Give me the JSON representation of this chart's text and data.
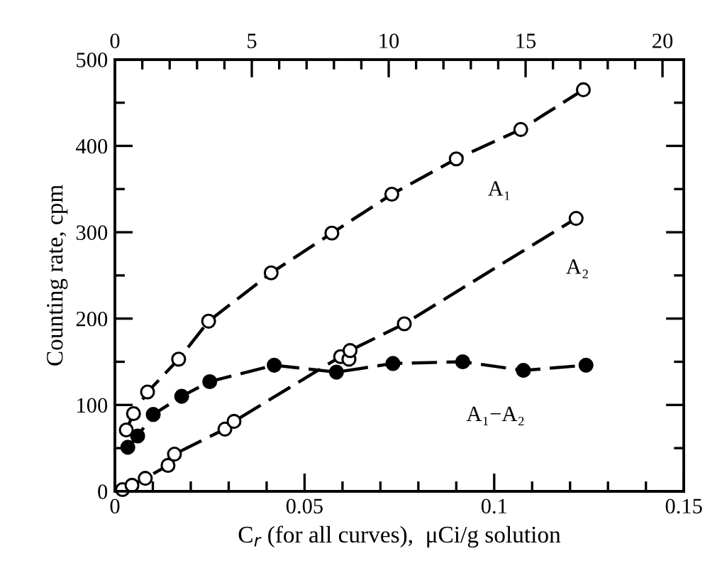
{
  "chart_data": {
    "type": "line",
    "xlabel": "C$_{r}$ (for all curves),  μCi/g solution",
    "ylabel": "Counting rate, cpm",
    "xlim": [
      0,
      0.15
    ],
    "ylim": [
      0,
      500
    ],
    "xticks": [
      0,
      {
        "value": 0.01,
        "label": null
      },
      {
        "value": 0.02,
        "label": null
      },
      {
        "value": 0.03,
        "label": null
      },
      {
        "value": 0.04,
        "label": null
      },
      0.05,
      {
        "value": 0.06,
        "label": null
      },
      {
        "value": 0.07,
        "label": null
      },
      {
        "value": 0.08,
        "label": null
      },
      {
        "value": 0.09,
        "label": null
      },
      0.1,
      {
        "value": 0.11,
        "label": null
      },
      {
        "value": 0.12,
        "label": null
      },
      {
        "value": 0.13,
        "label": null
      },
      {
        "value": 0.14,
        "label": null
      },
      0.15
    ],
    "yticks": [
      0,
      {
        "value": 50,
        "label": null
      },
      100,
      {
        "value": 150,
        "label": null
      },
      200,
      {
        "value": 250,
        "label": null
      },
      300,
      {
        "value": 350,
        "label": null
      },
      400,
      {
        "value": 450,
        "label": null
      },
      500
    ],
    "x2lim": [
      0,
      20.78
    ],
    "x2ticks": [
      0,
      {
        "value": 1,
        "label": null
      },
      {
        "value": 2,
        "label": null
      },
      {
        "value": 3,
        "label": null
      },
      {
        "value": 4,
        "label": null
      },
      5,
      {
        "value": 6,
        "label": null
      },
      {
        "value": 7,
        "label": null
      },
      {
        "value": 8,
        "label": null
      },
      {
        "value": 9,
        "label": null
      },
      10,
      {
        "value": 11,
        "label": null
      },
      {
        "value": 12,
        "label": null
      },
      {
        "value": 13,
        "label": null
      },
      {
        "value": 14,
        "label": null
      },
      15,
      {
        "value": 16,
        "label": null
      },
      {
        "value": 17,
        "label": null
      },
      {
        "value": 18,
        "label": null
      },
      {
        "value": 19,
        "label": null
      },
      20
    ],
    "grid": false,
    "legend": false,
    "line_style": "dashed",
    "series": [
      {
        "name": "A₁",
        "color": "#000000",
        "marker": "circle",
        "x": [
          0.003,
          0.0049,
          0.0086,
          0.0168,
          0.0247,
          0.0412,
          0.0572,
          0.073,
          0.09,
          0.107,
          0.1235
        ],
        "values": [
          71,
          90,
          115,
          153,
          197,
          253,
          299,
          344,
          385,
          419,
          465
        ]
      },
      {
        "name": "A₂",
        "color": "#000000",
        "marker": "circle",
        "x": [
          0.002,
          0.0045,
          0.008,
          0.014,
          0.0157,
          0.029,
          0.0314,
          0.0595,
          0.0617,
          0.062,
          0.0763,
          0.1216
        ],
        "values": [
          2,
          7,
          15,
          30,
          43,
          72,
          81,
          156,
          153,
          163,
          194,
          316
        ]
      },
      {
        "name": "A₁−A₂",
        "color": "#000000",
        "marker": "circle",
        "x": [
          0.0034,
          0.006,
          0.0101,
          0.0176,
          0.025,
          0.042,
          0.0584,
          0.0733,
          0.0917,
          0.1077,
          0.1242
        ],
        "values": [
          51,
          64,
          89,
          110,
          127,
          146,
          138,
          148,
          150,
          140,
          146
        ]
      }
    ]
  }
}
